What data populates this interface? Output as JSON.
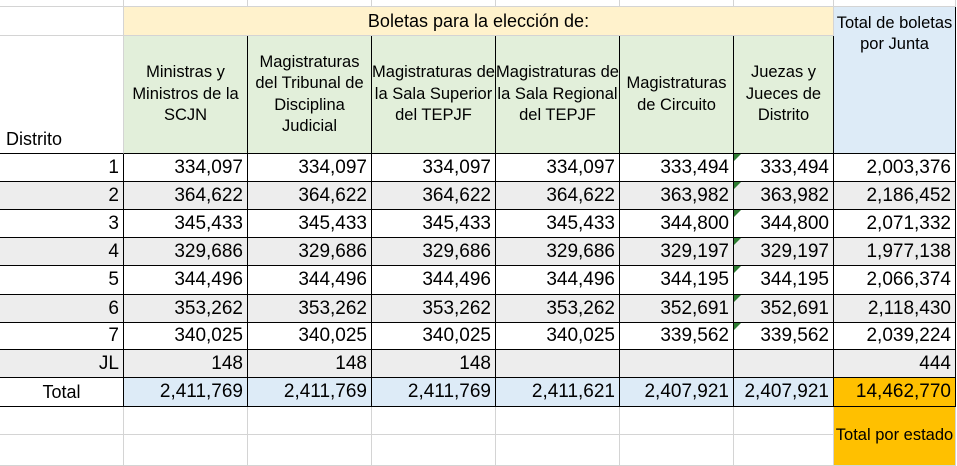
{
  "table": {
    "banner": "Boletas para la elección de:",
    "row_header": "Distrito",
    "columns": [
      "Ministras y Ministros de la SCJN",
      "Magistraturas del Tribunal de Disciplina Judicial",
      "Magistraturas de la Sala Superior del TEPJF",
      "Magistraturas de la Sala Regional del TEPJF",
      "Magistraturas de Circuito",
      "Juezas y Jueces de Distrito"
    ],
    "total_column": "Total de boletas por Junta",
    "rows": [
      {
        "label": "1",
        "values": [
          "334,097",
          "334,097",
          "334,097",
          "334,097",
          "333,494",
          "333,494"
        ],
        "total": "2,003,376"
      },
      {
        "label": "2",
        "values": [
          "364,622",
          "364,622",
          "364,622",
          "364,622",
          "363,982",
          "363,982"
        ],
        "total": "2,186,452"
      },
      {
        "label": "3",
        "values": [
          "345,433",
          "345,433",
          "345,433",
          "345,433",
          "344,800",
          "344,800"
        ],
        "total": "2,071,332"
      },
      {
        "label": "4",
        "values": [
          "329,686",
          "329,686",
          "329,686",
          "329,686",
          "329,197",
          "329,197"
        ],
        "total": "1,977,138"
      },
      {
        "label": "5",
        "values": [
          "344,496",
          "344,496",
          "344,496",
          "344,496",
          "344,195",
          "344,195"
        ],
        "total": "2,066,374"
      },
      {
        "label": "6",
        "values": [
          "353,262",
          "353,262",
          "353,262",
          "353,262",
          "352,691",
          "352,691"
        ],
        "total": "2,118,430"
      },
      {
        "label": "7",
        "values": [
          "340,025",
          "340,025",
          "340,025",
          "340,025",
          "339,562",
          "339,562"
        ],
        "total": "2,039,224"
      },
      {
        "label": "JL",
        "values": [
          "148",
          "148",
          "148",
          "",
          "",
          ""
        ],
        "total": "444"
      }
    ],
    "total_row": {
      "label": "Total",
      "values": [
        "2,411,769",
        "2,411,769",
        "2,411,769",
        "2,411,621",
        "2,407,921",
        "2,407,921"
      ],
      "total": "14,462,770"
    },
    "state_total_label": "Total por estado"
  },
  "colors": {
    "banner": "#FFF2CC",
    "column_header": "#E2EFDA",
    "total_header": "#DDEBF7",
    "band": "#EDEDED",
    "total_row": "#DDEBF7",
    "grand_total": "#FFC000",
    "gridline": "#D4D4D4"
  }
}
